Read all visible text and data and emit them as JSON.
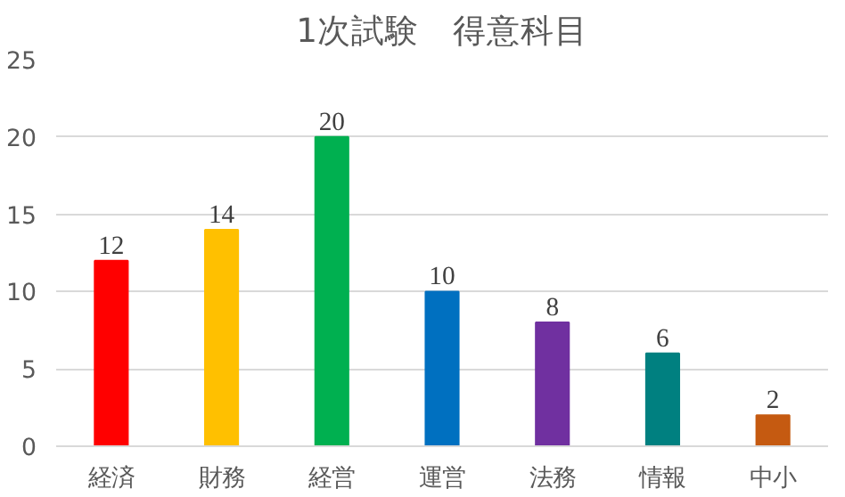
{
  "chart_data": {
    "type": "bar",
    "title": "1次試験　得意科目",
    "categories": [
      "経済",
      "財務",
      "経営",
      "運営",
      "法務",
      "情報",
      "中小"
    ],
    "values": [
      12,
      14,
      20,
      10,
      8,
      6,
      2
    ],
    "colors": [
      "#ff0000",
      "#ffc000",
      "#00b050",
      "#0070c0",
      "#7030a0",
      "#008080",
      "#c55a11"
    ],
    "ylim": [
      0,
      25
    ],
    "yticks": [
      0,
      5,
      10,
      15,
      20,
      25
    ],
    "grid": "y",
    "data_labels": true
  }
}
